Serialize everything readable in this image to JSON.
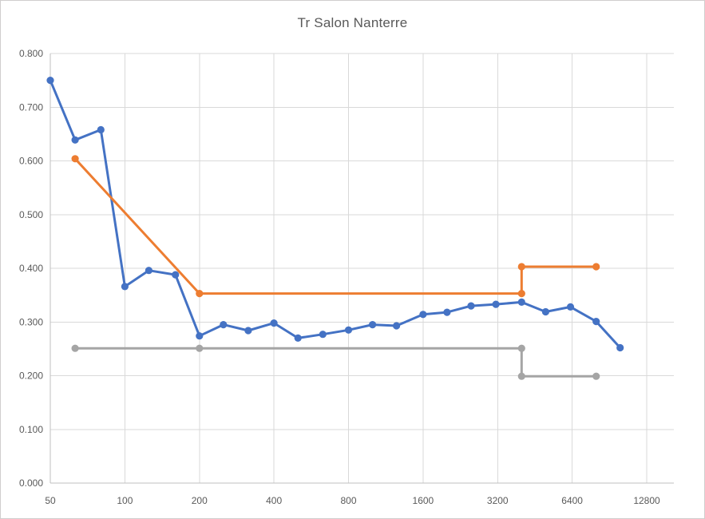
{
  "chart_data": {
    "type": "line",
    "title": "Tr Salon Nanterre",
    "legend": "none",
    "grid": true,
    "x_axis": {
      "scale": "log2",
      "min": 50,
      "max": 16000,
      "ticks": [
        50,
        100,
        200,
        400,
        800,
        1600,
        3200,
        6400,
        12800
      ],
      "tick_labels": [
        "50",
        "100",
        "200",
        "400",
        "800",
        "1600",
        "3200",
        "6400",
        "12800"
      ]
    },
    "y_axis": {
      "min": 0.0,
      "max": 0.8,
      "step": 0.1,
      "tick_labels": [
        "0.000",
        "0.100",
        "0.200",
        "0.300",
        "0.400",
        "0.500",
        "0.600",
        "0.700",
        "0.800"
      ]
    },
    "series": [
      {
        "id": "blue-third-octave-measurement",
        "color": "#4472C4",
        "marker": "circle",
        "points": [
          [
            50,
            0.75
          ],
          [
            63,
            0.639
          ],
          [
            80,
            0.658
          ],
          [
            100,
            0.366
          ],
          [
            125,
            0.396
          ],
          [
            160,
            0.388
          ],
          [
            200,
            0.274
          ],
          [
            250,
            0.295
          ],
          [
            315,
            0.284
          ],
          [
            400,
            0.298
          ],
          [
            500,
            0.27
          ],
          [
            630,
            0.277
          ],
          [
            800,
            0.285
          ],
          [
            1000,
            0.295
          ],
          [
            1250,
            0.293
          ],
          [
            1600,
            0.314
          ],
          [
            2000,
            0.318
          ],
          [
            2500,
            0.33
          ],
          [
            3150,
            0.333
          ],
          [
            4000,
            0.337
          ],
          [
            5000,
            0.319
          ],
          [
            6300,
            0.328
          ],
          [
            8000,
            0.301
          ],
          [
            10000,
            0.252
          ]
        ]
      },
      {
        "id": "orange-upper-step-line",
        "color": "#ED7D31",
        "marker": "circle",
        "points": [
          [
            63,
            0.604
          ],
          [
            200,
            0.353
          ],
          [
            4000,
            0.353
          ],
          [
            4000,
            0.403
          ],
          [
            8000,
            0.403
          ]
        ]
      },
      {
        "id": "gray-lower-step-line",
        "color": "#A5A5A5",
        "marker": "circle",
        "points": [
          [
            63,
            0.251
          ],
          [
            200,
            0.251
          ],
          [
            4000,
            0.251
          ],
          [
            4000,
            0.199
          ],
          [
            8000,
            0.199
          ]
        ]
      }
    ],
    "colors": {
      "grid": "#D9D9D9",
      "axis": "#BFBFBF",
      "tick_text": "#595959",
      "title_text": "#595959",
      "frame_border": "#D0CECE",
      "background": "#FFFFFF"
    }
  }
}
